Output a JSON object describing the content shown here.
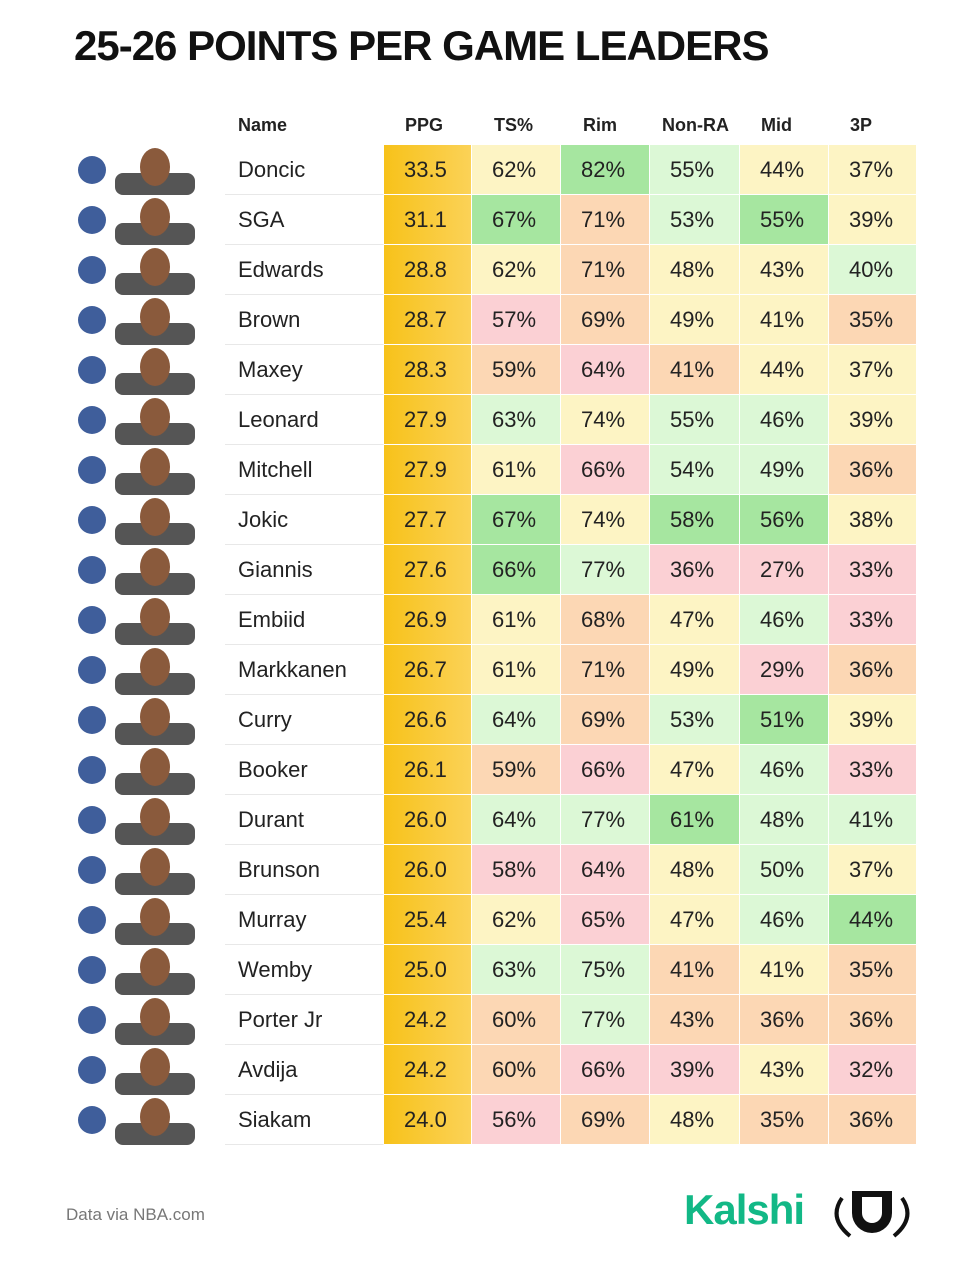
{
  "header": {
    "title": "25-26 POINTS PER GAME LEADERS"
  },
  "table": {
    "columns": [
      "Name",
      "PPG",
      "TS%",
      "Rim",
      "Non-RA",
      "Mid",
      "3P"
    ],
    "rows": [
      [
        "Doncic",
        "33.5",
        "62%",
        "82%",
        "55%",
        "44%",
        "37%"
      ],
      [
        "SGA",
        "31.1",
        "67%",
        "71%",
        "53%",
        "55%",
        "39%"
      ],
      [
        "Edwards",
        "28.8",
        "62%",
        "71%",
        "48%",
        "43%",
        "40%"
      ],
      [
        "Brown",
        "28.7",
        "57%",
        "69%",
        "49%",
        "41%",
        "35%"
      ],
      [
        "Maxey",
        "28.3",
        "59%",
        "64%",
        "41%",
        "44%",
        "37%"
      ],
      [
        "Leonard",
        "27.9",
        "63%",
        "74%",
        "55%",
        "46%",
        "39%"
      ],
      [
        "Mitchell",
        "27.9",
        "61%",
        "66%",
        "54%",
        "49%",
        "36%"
      ],
      [
        "Jokic",
        "27.7",
        "67%",
        "74%",
        "58%",
        "56%",
        "38%"
      ],
      [
        "Giannis",
        "27.6",
        "66%",
        "77%",
        "36%",
        "27%",
        "33%"
      ],
      [
        "Embiid",
        "26.9",
        "61%",
        "68%",
        "47%",
        "46%",
        "33%"
      ],
      [
        "Markkanen",
        "26.7",
        "61%",
        "71%",
        "49%",
        "29%",
        "36%"
      ],
      [
        "Curry",
        "26.6",
        "64%",
        "69%",
        "53%",
        "51%",
        "39%"
      ],
      [
        "Booker",
        "26.1",
        "59%",
        "66%",
        "47%",
        "46%",
        "33%"
      ],
      [
        "Durant",
        "26.0",
        "64%",
        "77%",
        "61%",
        "48%",
        "41%"
      ],
      [
        "Brunson",
        "26.0",
        "58%",
        "64%",
        "48%",
        "50%",
        "37%"
      ],
      [
        "Murray",
        "25.4",
        "62%",
        "65%",
        "47%",
        "46%",
        "44%"
      ],
      [
        "Wemby",
        "25.0",
        "63%",
        "75%",
        "41%",
        "41%",
        "35%"
      ],
      [
        "Porter Jr",
        "24.2",
        "60%",
        "77%",
        "43%",
        "36%",
        "36%"
      ],
      [
        "Avdija",
        "24.2",
        "60%",
        "66%",
        "39%",
        "43%",
        "32%"
      ],
      [
        "Siakam",
        "24.0",
        "56%",
        "69%",
        "48%",
        "35%",
        "36%"
      ]
    ]
  },
  "footer": {
    "source": "Data via NBA.com",
    "brand": "Kalshi"
  }
}
